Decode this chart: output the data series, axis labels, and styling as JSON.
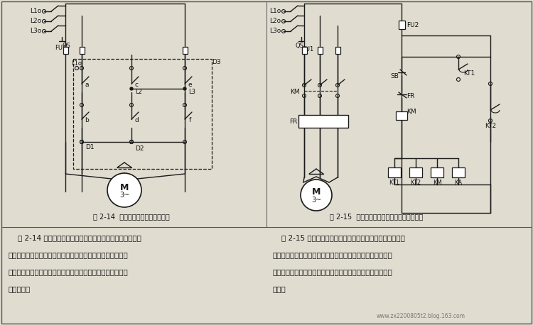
{
  "bg_color": "#d8d4c8",
  "fig_bg": "#e0dcd0",
  "line_color": "#1a1a1a",
  "text_color": "#111111",
  "fig_title_left": "图 2-14  倒顺开关可逆运行控制线路",
  "fig_title_right": "图 2-15  按周期重复运行的单向运行控制线路",
  "text_left_1": "    图 2-14 所示为采用倒顺开关进行可逆运行的控制线路，该",
  "text_left_2": "线路利用倒顺开关的换相作用去改变电动机电源的相序以控制",
  "text_left_3": "其进行可逆运行，倒顺开关一般仅用在小功率三相电动机的可",
  "text_left_4": "逆运行中。",
  "text_right_1": "    图 2-15 所示为按周期重复运行的单向运行控制线路，该线",
  "text_right_2": "路使用两只时间继电器和一只中间继电器，对电动机作同歇停",
  "text_right_3": "止重复运行的控制，本线路通常用于机床自动间歇润滑系统的",
  "text_right_4": "控制。",
  "watermark": "www.zx2200805t2.blog.163.com"
}
